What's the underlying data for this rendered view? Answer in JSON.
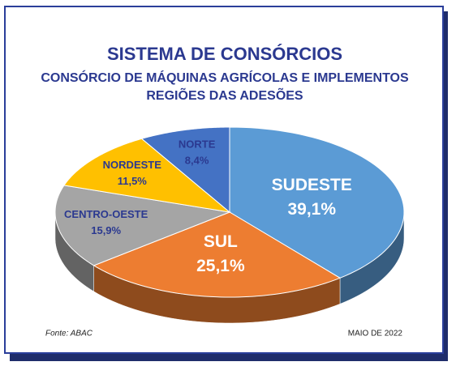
{
  "chart_data": {
    "type": "pie3d",
    "title": "SISTEMA DE CONSÓRCIOS",
    "subtitle": "CONSÓRCIO DE MÁQUINAS AGRÍCOLAS E IMPLEMENTOS",
    "subtitle2": "REGIÕES DAS ADESÕES",
    "categories": [
      "SUDESTE",
      "SUL",
      "CENTRO-OESTE",
      "NORDESTE",
      "NORTE"
    ],
    "values": [
      39.1,
      25.1,
      15.9,
      11.5,
      8.4
    ],
    "value_labels": [
      "39,1%",
      "25,1%",
      "15,9%",
      "11,5%",
      "8,4%"
    ],
    "colors": [
      "#5b9bd5",
      "#ed7d31",
      "#a5a5a5",
      "#ffc000",
      "#4472c4"
    ],
    "source": "Fonte: ABAC",
    "date": "MAIO DE 2022"
  }
}
